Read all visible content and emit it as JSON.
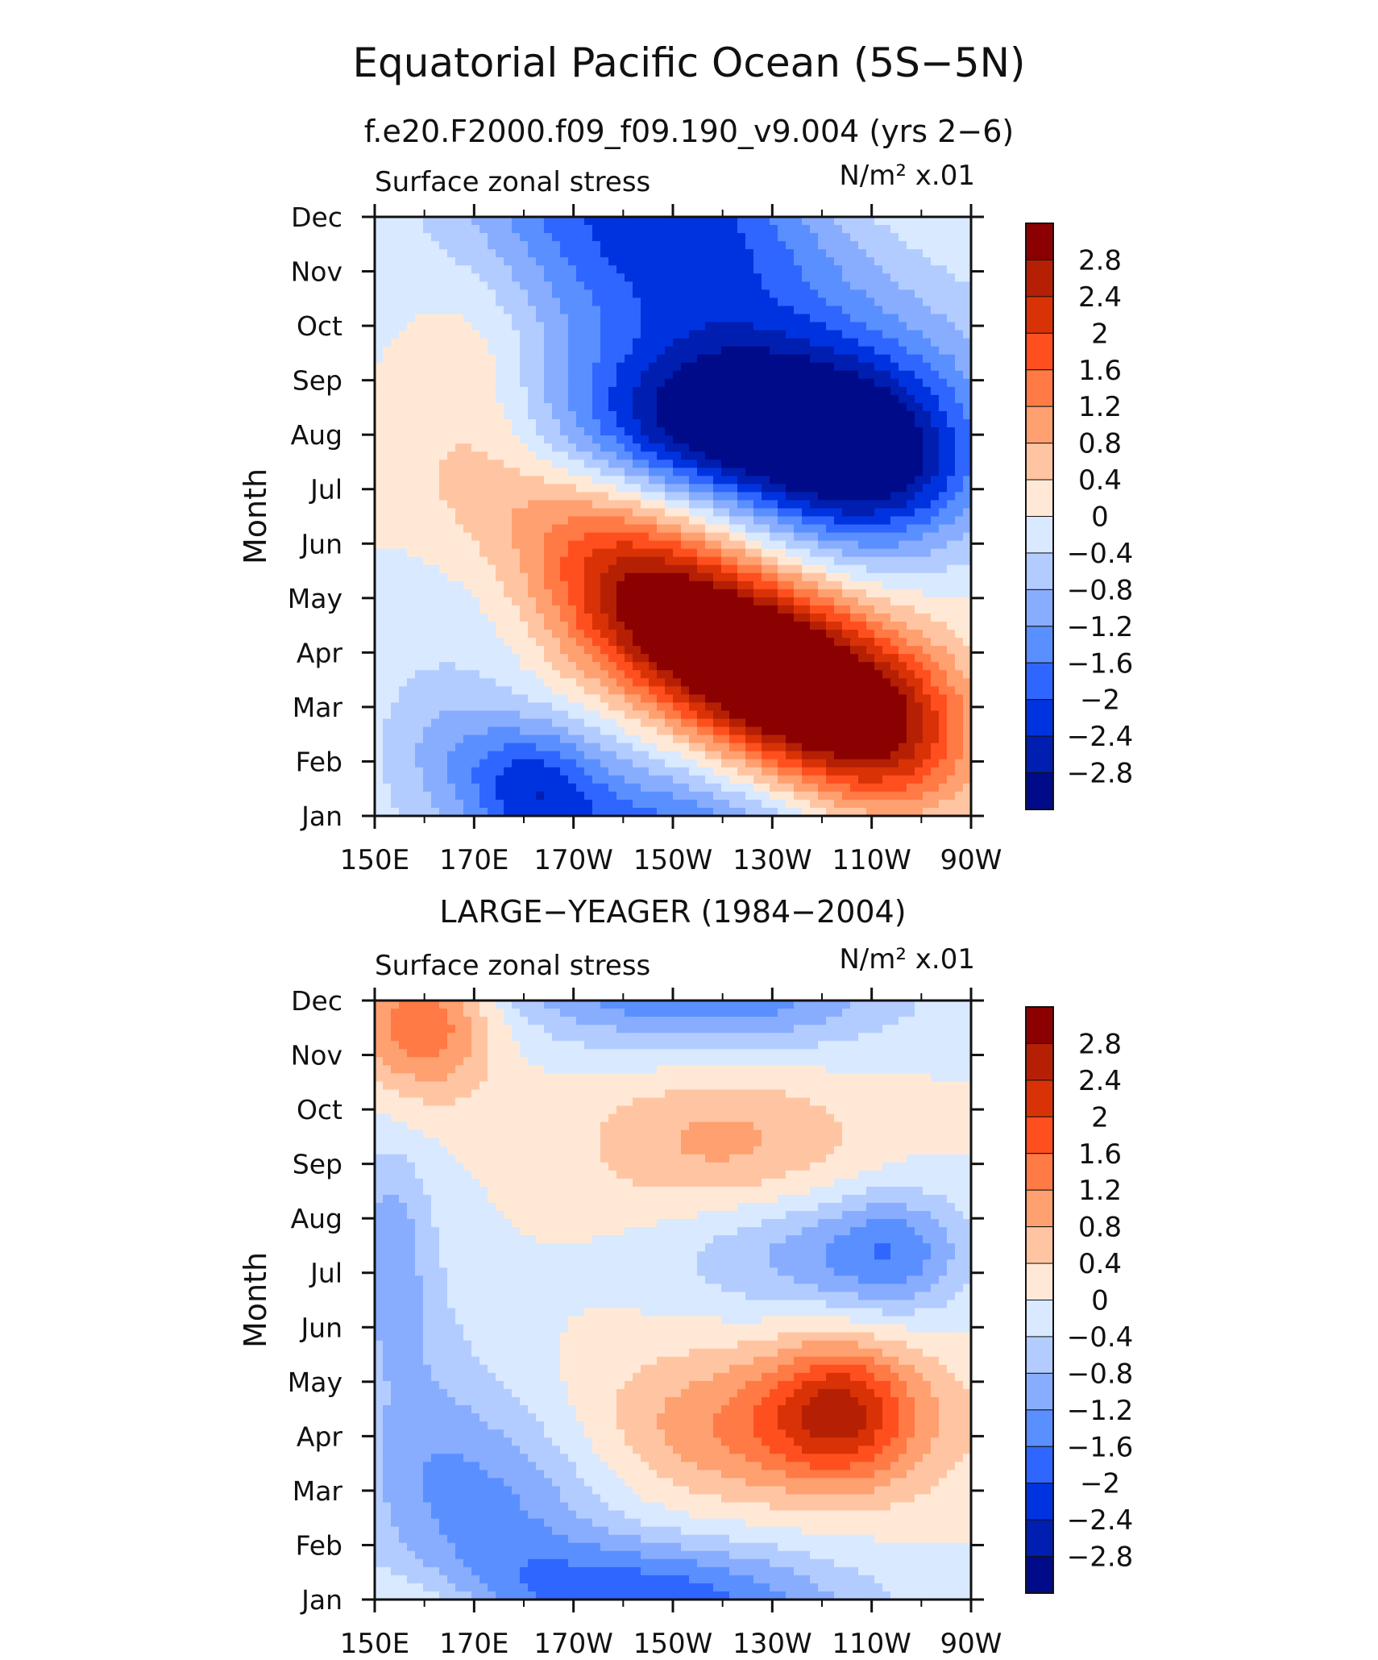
{
  "figure": {
    "title": "Equatorial Pacific Ocean (5S−5N)",
    "subtitle": "f.e20.F2000.f09_f09.190_v9.004 (yrs 2−6)"
  },
  "colorbar": {
    "labels": [
      "2.8",
      "2.4",
      "2",
      "1.6",
      "1.2",
      "0.8",
      "0.4",
      "0",
      "−0.4",
      "−0.8",
      "−1.2",
      "−1.6",
      "−2",
      "−2.4",
      "−2.8"
    ],
    "colors": [
      "#8b0000",
      "#b52005",
      "#d93206",
      "#ff4f1f",
      "#ff7a45",
      "#ffa070",
      "#ffc5a2",
      "#ffe9d6",
      "#d9e9ff",
      "#b3ccff",
      "#88adff",
      "#5a8fff",
      "#2f66ff",
      "#0033e0",
      "#001eb0",
      "#000b8a"
    ]
  },
  "chart_data": [
    {
      "type": "heatmap",
      "panel_title": "",
      "left_label": "Surface zonal stress",
      "right_label": "N/m² x.01",
      "ylabel": "Month",
      "x_ticks": [
        "150E",
        "170E",
        "170W",
        "150W",
        "130W",
        "110W",
        "90W"
      ],
      "x_range": [
        150,
        270
      ],
      "y_ticks": [
        "Jan",
        "Feb",
        "Mar",
        "Apr",
        "May",
        "Jun",
        "Jul",
        "Aug",
        "Sep",
        "Oct",
        "Nov",
        "Dec"
      ],
      "levels": [
        -2.8,
        -2.4,
        -2.0,
        -1.6,
        -1.2,
        -0.8,
        -0.4,
        0,
        0.4,
        0.8,
        1.2,
        1.6,
        2.0,
        2.4,
        2.8
      ],
      "features": [
        {
          "lon": 245,
          "month": 12.2,
          "value": 0.6,
          "spread": [
            22,
            1.6
          ]
        },
        {
          "lon": 210,
          "month": 12.3,
          "value": -1.9,
          "spread": [
            28,
            1.3
          ]
        },
        {
          "lon": 220,
          "month": 10.8,
          "value": -1.0,
          "spread": [
            30,
            1.2
          ]
        },
        {
          "lon": 220,
          "month": 8.1,
          "value": -2.3,
          "spread": [
            22,
            1.0
          ]
        },
        {
          "lon": 250,
          "month": 7.3,
          "value": -2.5,
          "spread": [
            16,
            1.1
          ]
        },
        {
          "lon": 232,
          "month": 9.0,
          "value": -1.5,
          "spread": [
            30,
            1.2
          ]
        },
        {
          "lon": 170,
          "month": 9.3,
          "value": 0.55,
          "spread": [
            10,
            1.5
          ]
        },
        {
          "lon": 175,
          "month": 7.0,
          "value": 0.45,
          "spread": [
            16,
            1.0
          ]
        },
        {
          "lon": 195,
          "month": 6.1,
          "value": 1.1,
          "spread": [
            14,
            1.0
          ]
        },
        {
          "lon": 207,
          "month": 4.8,
          "value": 2.4,
          "spread": [
            14,
            1.0
          ]
        },
        {
          "lon": 225,
          "month": 3.9,
          "value": 2.8,
          "spread": [
            14,
            1.0
          ]
        },
        {
          "lon": 241,
          "month": 3.0,
          "value": 2.6,
          "spread": [
            15,
            1.1
          ]
        },
        {
          "lon": 255,
          "month": 2.4,
          "value": 1.4,
          "spread": [
            12,
            1.0
          ]
        },
        {
          "lon": 182,
          "month": 1.6,
          "value": -1.5,
          "spread": [
            10,
            0.8
          ]
        },
        {
          "lon": 165,
          "month": 2.3,
          "value": -0.6,
          "spread": [
            10,
            0.8
          ]
        },
        {
          "lon": 165,
          "month": 4.2,
          "value": -0.3,
          "spread": [
            14,
            1.6
          ]
        }
      ]
    },
    {
      "type": "heatmap",
      "panel_title": "LARGE−YEAGER (1984−2004)",
      "left_label": "Surface zonal stress",
      "right_label": "N/m² x.01",
      "ylabel": "Month",
      "x_ticks": [
        "150E",
        "170E",
        "170W",
        "150W",
        "130W",
        "110W",
        "90W"
      ],
      "x_range": [
        150,
        270
      ],
      "y_ticks": [
        "Jan",
        "Feb",
        "Mar",
        "Apr",
        "May",
        "Jun",
        "Jul",
        "Aug",
        "Sep",
        "Oct",
        "Nov",
        "Dec"
      ],
      "levels": [
        -2.8,
        -2.4,
        -2.0,
        -1.6,
        -1.2,
        -0.8,
        -0.4,
        0,
        0.4,
        0.8,
        1.2,
        1.6,
        2.0,
        2.4,
        2.8
      ],
      "features": [
        {
          "lon": 160,
          "month": 11.7,
          "value": 1.7,
          "spread": [
            10,
            1.0
          ]
        },
        {
          "lon": 218,
          "month": 12.0,
          "value": -1.3,
          "spread": [
            26,
            0.7
          ]
        },
        {
          "lon": 220,
          "month": 9.4,
          "value": 0.9,
          "spread": [
            20,
            0.9
          ]
        },
        {
          "lon": 236,
          "month": 7.3,
          "value": -0.9,
          "spread": [
            18,
            0.8
          ]
        },
        {
          "lon": 255,
          "month": 7.4,
          "value": -1.1,
          "spread": [
            10,
            0.8
          ]
        },
        {
          "lon": 153,
          "month": 7.5,
          "value": -0.9,
          "spread": [
            6,
            1.4
          ]
        },
        {
          "lon": 230,
          "month": 4.2,
          "value": 1.3,
          "spread": [
            26,
            1.0
          ]
        },
        {
          "lon": 244,
          "month": 4.5,
          "value": 1.6,
          "spread": [
            10,
            0.9
          ]
        },
        {
          "lon": 175,
          "month": 2.8,
          "value": -1.2,
          "spread": [
            16,
            1.4
          ]
        },
        {
          "lon": 205,
          "month": 1.2,
          "value": -1.5,
          "spread": [
            26,
            0.7
          ]
        },
        {
          "lon": 158,
          "month": 4.5,
          "value": -0.6,
          "spread": [
            10,
            2.0
          ]
        }
      ]
    }
  ]
}
